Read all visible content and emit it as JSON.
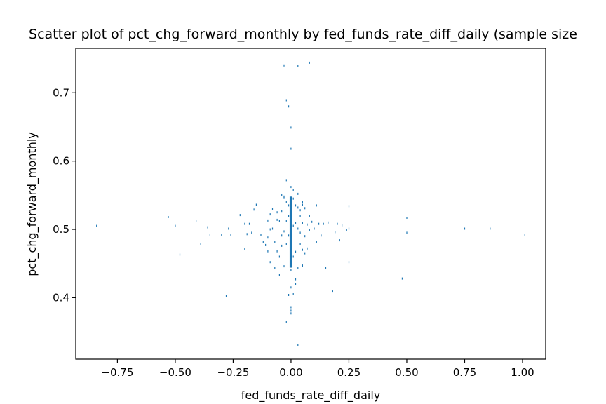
{
  "chart_data": {
    "type": "scatter",
    "title": "Scatter plot of pct_chg_forward_monthly by fed_funds_rate_diff_daily (sample size",
    "xlabel": "fed_funds_rate_diff_daily",
    "ylabel": "pct_chg_forward_monthly",
    "xlim": [
      -0.93,
      1.1
    ],
    "ylim": [
      0.31,
      0.765
    ],
    "grid": false,
    "x_ticks": [
      -0.75,
      -0.5,
      -0.25,
      0.0,
      0.25,
      0.5,
      0.75,
      1.0
    ],
    "x_tick_labels": [
      "−0.75",
      "−0.50",
      "−0.25",
      "0.00",
      "0.25",
      "0.50",
      "0.75",
      "1.00"
    ],
    "y_ticks": [
      0.4,
      0.5,
      0.6,
      0.7
    ],
    "y_tick_labels": [
      "0.4",
      "0.5",
      "0.6",
      "0.7"
    ],
    "series": [
      {
        "color": "#1f77b4",
        "x": [
          -0.84,
          -0.53,
          -0.5,
          -0.48,
          -0.41,
          -0.39,
          -0.36,
          -0.35,
          -0.3,
          -0.28,
          -0.27,
          -0.26,
          -0.22,
          -0.2,
          -0.2,
          -0.19,
          -0.18,
          -0.17,
          -0.16,
          -0.15,
          -0.13,
          -0.12,
          -0.11,
          -0.1,
          -0.1,
          -0.09,
          -0.09,
          -0.08,
          -0.08,
          -0.07,
          -0.07,
          -0.06,
          -0.06,
          -0.05,
          -0.05,
          -0.04,
          -0.04,
          -0.03,
          -0.03,
          -0.03,
          -0.02,
          -0.02,
          -0.02,
          -0.01,
          -0.01,
          0.01,
          0.01,
          0.02,
          0.02,
          0.02,
          0.03,
          0.03,
          0.03,
          0.04,
          0.04,
          0.05,
          0.05,
          0.06,
          0.06,
          0.07,
          0.07,
          0.08,
          0.08,
          0.09,
          0.1,
          0.11,
          0.11,
          0.12,
          0.13,
          0.14,
          0.15,
          0.16,
          0.18,
          0.19,
          0.2,
          0.21,
          0.22,
          0.24,
          0.25,
          0.25,
          0.25,
          0.48,
          0.5,
          0.5,
          0.75,
          0.86,
          1.01,
          -0.03,
          0.03,
          0.08,
          -0.02,
          -0.01,
          0.0,
          0.0,
          0.0,
          0.0,
          0.0,
          -0.01,
          0.01,
          0.05,
          -0.04,
          -0.03,
          -0.02,
          -0.01,
          0.0,
          0.0,
          0.0,
          0.0,
          0.01,
          0.02,
          0.03,
          0.04,
          0.05,
          0.06,
          -0.1,
          -0.09,
          -0.05,
          0.02,
          0.05,
          -0.06,
          -0.04,
          0.0,
          0.0,
          0.04,
          -0.02,
          0.03,
          0.01
        ],
        "y": [
          0.505,
          0.518,
          0.505,
          0.463,
          0.512,
          0.478,
          0.503,
          0.492,
          0.492,
          0.402,
          0.501,
          0.492,
          0.521,
          0.471,
          0.508,
          0.493,
          0.508,
          0.495,
          0.529,
          0.536,
          0.492,
          0.481,
          0.477,
          0.513,
          0.468,
          0.522,
          0.452,
          0.501,
          0.53,
          0.481,
          0.444,
          0.514,
          0.468,
          0.512,
          0.433,
          0.527,
          0.491,
          0.446,
          0.497,
          0.546,
          0.478,
          0.512,
          0.572,
          0.491,
          0.52,
          0.505,
          0.558,
          0.467,
          0.509,
          0.427,
          0.501,
          0.552,
          0.443,
          0.519,
          0.478,
          0.509,
          0.447,
          0.49,
          0.531,
          0.507,
          0.472,
          0.499,
          0.52,
          0.511,
          0.501,
          0.481,
          0.535,
          0.508,
          0.491,
          0.508,
          0.443,
          0.51,
          0.409,
          0.496,
          0.508,
          0.484,
          0.506,
          0.499,
          0.452,
          0.501,
          0.534,
          0.428,
          0.517,
          0.495,
          0.501,
          0.501,
          0.492,
          0.74,
          0.739,
          0.744,
          0.689,
          0.68,
          0.649,
          0.618,
          0.381,
          0.386,
          0.377,
          0.404,
          0.405,
          0.536,
          0.55,
          0.548,
          0.54,
          0.535,
          0.53,
          0.47,
          0.46,
          0.44,
          0.545,
          0.535,
          0.532,
          0.528,
          0.47,
          0.465,
          0.488,
          0.5,
          0.46,
          0.42,
          0.54,
          0.525,
          0.476,
          0.415,
          0.562,
          0.495,
          0.365,
          0.33,
          0.46
        ]
      }
    ]
  }
}
